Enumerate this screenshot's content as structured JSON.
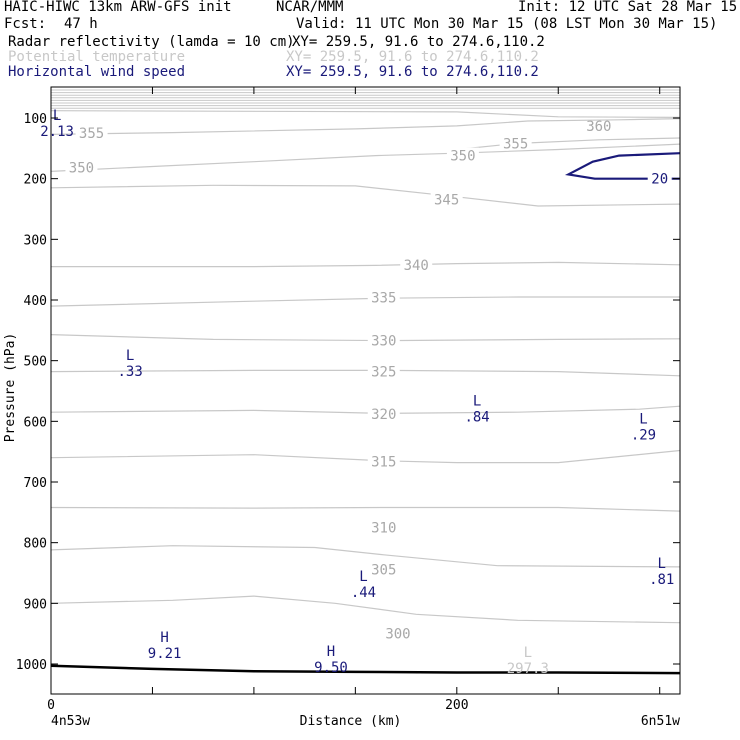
{
  "header": {
    "title": "HAIC-HIWC 13km ARW-GFS init",
    "org": "NCAR/MMM",
    "init": "Init: 12 UTC Sat 28 Mar 15",
    "fcst_label": "Fcst:",
    "fcst_value": "47 h",
    "valid": "Valid: 11 UTC Mon 30 Mar 15 (08 LST Mon 30 Mar 15)",
    "fields": [
      {
        "name": "Radar reflectivity (lamda = 10 cm)",
        "xy": "XY= 259.5, 91.6 to 274.6,110.2",
        "color": "#000000"
      },
      {
        "name": "Potential temperature",
        "xy": "XY= 259.5, 91.6 to 274.6,110.2",
        "color": "#c8c8c8"
      },
      {
        "name": "Horizontal wind speed",
        "xy": "XY= 259.5, 91.6 to 274.6,110.2",
        "color": "#1a1a7a"
      }
    ]
  },
  "chart_data": {
    "type": "line",
    "xlabel": "Distance (km)",
    "ylabel": "Pressure (hPa)",
    "xlim": [
      0,
      310
    ],
    "ylim": [
      1050,
      50
    ],
    "x_ticks": [
      0,
      50,
      100,
      150,
      200,
      250,
      300
    ],
    "x_tick_labels": [
      {
        "x": 0,
        "label": "0"
      },
      {
        "x": 200,
        "label": "200"
      }
    ],
    "x_end_labels": {
      "left": "4n53w",
      "right": "6n51w"
    },
    "y_ticks": [
      100,
      200,
      300,
      400,
      500,
      600,
      700,
      800,
      900,
      1000
    ],
    "y_tick_labels": [
      "100",
      "200",
      "300",
      "400",
      "500",
      "600",
      "700",
      "800",
      "900",
      "1000"
    ],
    "theta_color": "#c8c8c8",
    "wind_color": "#1a1a7a",
    "ground_color": "#000000",
    "theta_contours": [
      {
        "label": "360",
        "label_at": [
          270,
          113
        ],
        "points": [
          [
            0,
            88
          ],
          [
            100,
            89
          ],
          [
            200,
            90
          ],
          [
            250,
            98
          ],
          [
            310,
            99
          ]
        ]
      },
      {
        "label": "355",
        "label_at": [
          20,
          125
        ],
        "points": [
          [
            0,
            127
          ],
          [
            60,
            124
          ],
          [
            150,
            118
          ],
          [
            200,
            113
          ],
          [
            235,
            105
          ],
          [
            280,
            103
          ],
          [
            310,
            101
          ]
        ]
      },
      {
        "label": "355",
        "label_at": [
          229,
          142
        ],
        "points": [
          [
            200,
            152
          ],
          [
            229,
            142
          ],
          [
            270,
            136
          ],
          [
            310,
            133
          ]
        ]
      },
      {
        "label": "350",
        "label_at": [
          15,
          182
        ],
        "points": [
          [
            0,
            188
          ],
          [
            50,
            180
          ],
          [
            100,
            172
          ],
          [
            160,
            162
          ],
          [
            200,
            158
          ],
          [
            250,
            152
          ],
          [
            310,
            143
          ]
        ]
      },
      {
        "label": "350",
        "label_at": [
          203,
          162
        ],
        "points": []
      },
      {
        "label": "345",
        "label_at": [
          195,
          234
        ],
        "points": [
          [
            0,
            215
          ],
          [
            80,
            211
          ],
          [
            150,
            212
          ],
          [
            195,
            228
          ],
          [
            240,
            245
          ],
          [
            310,
            242
          ]
        ]
      },
      {
        "label": "340",
        "label_at": [
          180,
          342
        ],
        "points": [
          [
            0,
            345
          ],
          [
            100,
            345
          ],
          [
            160,
            343
          ],
          [
            200,
            340
          ],
          [
            250,
            338
          ],
          [
            310,
            342
          ]
        ]
      },
      {
        "label": "335",
        "label_at": [
          164,
          396
        ],
        "points": [
          [
            0,
            410
          ],
          [
            100,
            402
          ],
          [
            164,
            397
          ],
          [
            230,
            395
          ],
          [
            310,
            395
          ]
        ]
      },
      {
        "label": "330",
        "label_at": [
          164,
          467
        ],
        "points": [
          [
            0,
            457
          ],
          [
            80,
            465
          ],
          [
            164,
            467
          ],
          [
            250,
            465
          ],
          [
            310,
            464
          ]
        ]
      },
      {
        "label": "325",
        "label_at": [
          164,
          518
        ],
        "points": [
          [
            0,
            518
          ],
          [
            100,
            516
          ],
          [
            164,
            516
          ],
          [
            250,
            518
          ],
          [
            310,
            525
          ]
        ]
      },
      {
        "label": "320",
        "label_at": [
          164,
          588
        ],
        "points": [
          [
            0,
            585
          ],
          [
            100,
            582
          ],
          [
            164,
            587
          ],
          [
            230,
            585
          ],
          [
            290,
            580
          ],
          [
            310,
            575
          ]
        ]
      },
      {
        "label": "315",
        "label_at": [
          164,
          666
        ],
        "points": [
          [
            0,
            660
          ],
          [
            100,
            655
          ],
          [
            164,
            665
          ],
          [
            200,
            668
          ],
          [
            250,
            668
          ],
          [
            310,
            648
          ]
        ]
      },
      {
        "label": "310",
        "label_at": [
          164,
          775
        ],
        "points": [
          [
            0,
            742
          ],
          [
            100,
            743
          ],
          [
            164,
            742
          ],
          [
            250,
            742
          ],
          [
            310,
            748
          ]
        ]
      },
      {
        "label": "305",
        "label_at": [
          164,
          844
        ],
        "points": [
          [
            0,
            812
          ],
          [
            60,
            805
          ],
          [
            130,
            808
          ],
          [
            164,
            820
          ],
          [
            220,
            838
          ],
          [
            310,
            840
          ]
        ]
      },
      {
        "label": "300",
        "label_at": [
          171,
          950
        ],
        "points": [
          [
            0,
            900
          ],
          [
            60,
            895
          ],
          [
            100,
            888
          ],
          [
            140,
            900
          ],
          [
            180,
            918
          ],
          [
            230,
            928
          ],
          [
            310,
            932
          ]
        ]
      }
    ],
    "wind_contours": [
      {
        "label": "20",
        "label_at": [
          300,
          200
        ],
        "points": [
          [
            310,
            158
          ],
          [
            280,
            162
          ],
          [
            267,
            172
          ],
          [
            255,
            193
          ],
          [
            268,
            200
          ],
          [
            310,
            200
          ]
        ]
      }
    ],
    "ground_line": [
      [
        0,
        1003
      ],
      [
        50,
        1008
      ],
      [
        100,
        1012
      ],
      [
        150,
        1013
      ],
      [
        200,
        1014
      ],
      [
        250,
        1014
      ],
      [
        310,
        1015
      ]
    ],
    "extrema": [
      {
        "type": "L",
        "value": "2.13",
        "at": [
          3,
          120
        ],
        "color": "#1a1a7a"
      },
      {
        "type": "L",
        "value": ".33",
        "at": [
          39,
          515
        ],
        "color": "#1a1a7a"
      },
      {
        "type": "L",
        "value": ".84",
        "at": [
          210,
          590
        ],
        "color": "#1a1a7a"
      },
      {
        "type": "L",
        "value": ".29",
        "at": [
          292,
          620
        ],
        "color": "#1a1a7a"
      },
      {
        "type": "L",
        "value": ".44",
        "at": [
          154,
          880
        ],
        "color": "#1a1a7a"
      },
      {
        "type": "L",
        "value": ".81",
        "at": [
          301,
          858
        ],
        "color": "#1a1a7a"
      },
      {
        "type": "H",
        "value": "9.21",
        "at": [
          56,
          980
        ],
        "color": "#1a1a7a"
      },
      {
        "type": "H",
        "value": "9.50",
        "at": [
          138,
          1003
        ],
        "color": "#1a1a7a"
      },
      {
        "type": "L",
        "value": "297.3",
        "at": [
          235,
          1005
        ],
        "color": "#c8c8c8"
      }
    ]
  }
}
